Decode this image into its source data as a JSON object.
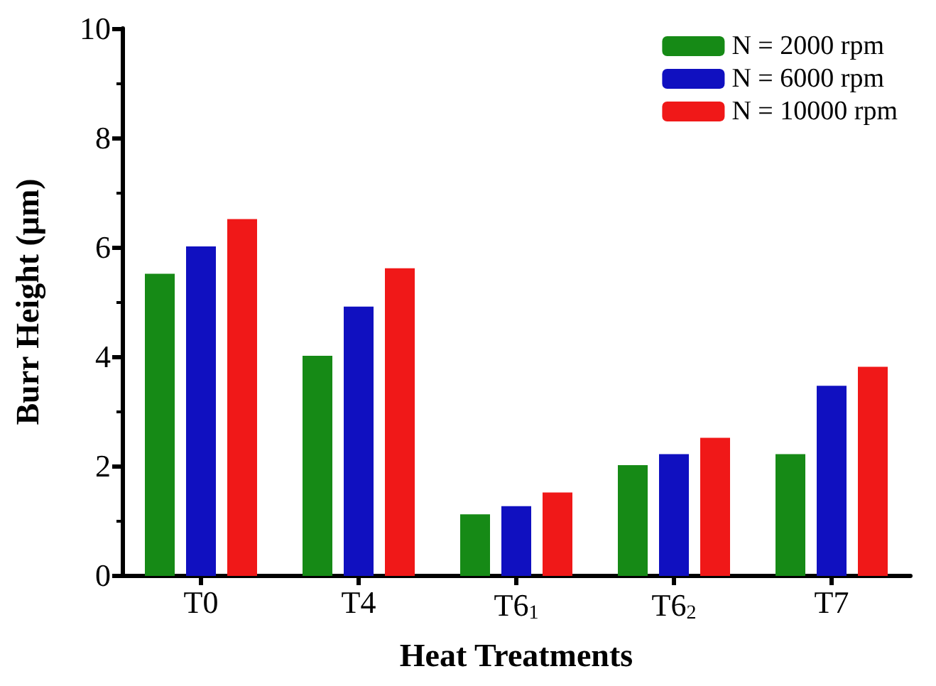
{
  "chart_data": {
    "type": "bar",
    "xlabel": "Heat Treatments",
    "ylabel": "Burr Height (μm)",
    "categories": [
      "T0",
      "T4",
      "T6$_{1}$",
      "T6$_{2}$",
      "T7"
    ],
    "series": [
      {
        "name": "N = 2000 rpm",
        "color": "#168a16",
        "values": [
          5.5,
          4.0,
          1.1,
          2.0,
          2.2
        ]
      },
      {
        "name": "N = 6000 rpm",
        "color": "#1010c0",
        "values": [
          6.0,
          4.9,
          1.25,
          2.2,
          3.45
        ]
      },
      {
        "name": "N = 10000 rpm",
        "color": "#f01818",
        "values": [
          6.5,
          5.6,
          1.5,
          2.5,
          3.8
        ]
      }
    ],
    "ylim": [
      0,
      10
    ],
    "yticks": [
      0,
      2,
      4,
      6,
      8,
      10
    ],
    "grid": false,
    "legend": "top right"
  }
}
